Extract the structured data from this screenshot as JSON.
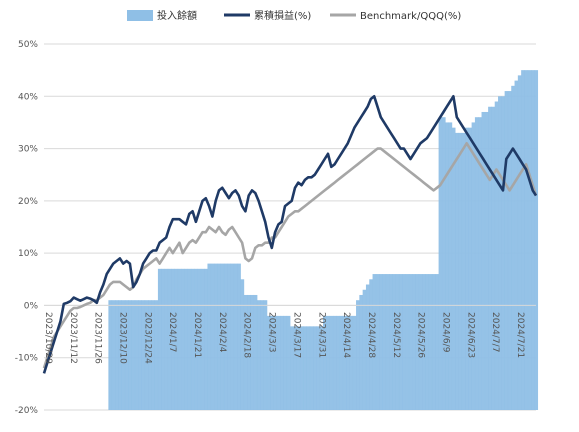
{
  "colors": {
    "invested": "#8fbfe6",
    "cumulative": "#1f3a66",
    "benchmark": "#a6a6a6",
    "grid": "#d9d9d9"
  },
  "legend": {
    "invested": "投入餘額",
    "cumulative": "累積損益(%)",
    "benchmark": "Benchmark/QQQ(%)"
  },
  "chart_data": {
    "type": "line",
    "title": "",
    "xlabel": "",
    "ylabel": "",
    "ylim": [
      -20,
      50
    ],
    "y_ticks": [
      "-20%",
      "-10%",
      "0%",
      "10%",
      "20%",
      "30%",
      "40%",
      "50%"
    ],
    "x_tick_labels": [
      "2023/10/29",
      "2023/11/12",
      "2023/11/26",
      "2023/12/10",
      "2023/12/24",
      "2024/1/7",
      "2024/1/21",
      "2024/2/4",
      "2024/2/18",
      "2024/3/3",
      "2024/3/17",
      "2024/3/31",
      "2024/4/14",
      "2024/4/28",
      "2024/5/12",
      "2024/5/26",
      "2024/6/9",
      "2024/6/23",
      "2024/7/7",
      "2024/7/21"
    ],
    "grid": true,
    "legend_position": "top",
    "series": [
      {
        "name": "投入餘額",
        "type": "area",
        "values": [
          -20,
          -20,
          -20,
          -20,
          -20,
          -20,
          -20,
          -20,
          -20,
          -20,
          -20,
          -20,
          -20,
          -20,
          -20,
          -20,
          -20,
          -20,
          -20,
          -20,
          1,
          1,
          1,
          1,
          1,
          1,
          1,
          1,
          1,
          1,
          1,
          1,
          1,
          1,
          1,
          7,
          7,
          7,
          7,
          7,
          7,
          7,
          7,
          7,
          7,
          7,
          7,
          7,
          7,
          7,
          8,
          8,
          8,
          8,
          8,
          8,
          8,
          8,
          8,
          8,
          5,
          2,
          2,
          2,
          2,
          1,
          1,
          1,
          -2,
          -2,
          -2,
          -2,
          -2,
          -2,
          -2,
          -4,
          -4,
          -4,
          -4,
          -4,
          -4,
          -4,
          -4,
          -4,
          -4,
          -2,
          -2,
          -2,
          -2,
          -2,
          -2,
          -2,
          -2,
          -2,
          -2,
          1,
          2,
          3,
          4,
          5,
          6,
          6,
          6,
          6,
          6,
          6,
          6,
          6,
          6,
          6,
          6,
          6,
          6,
          6,
          6,
          6,
          6,
          6,
          6,
          6,
          36,
          36,
          35,
          35,
          34,
          33,
          33,
          33,
          34,
          34,
          35,
          36,
          36,
          37,
          37,
          38,
          38,
          39,
          40,
          40,
          41,
          41,
          42,
          43,
          44,
          45,
          45,
          45,
          45,
          45
        ]
      },
      {
        "name": "累積損益(%)",
        "type": "line",
        "values": [
          -13,
          -11,
          -9,
          -7,
          -5,
          -3,
          0.3,
          0.5,
          0.8,
          1.5,
          1.2,
          0.9,
          1.2,
          1.5,
          1.3,
          1,
          0.5,
          2.5,
          4,
          6,
          7,
          8,
          8.5,
          9,
          8,
          8.5,
          8,
          3.5,
          4.5,
          6,
          8,
          9,
          10,
          10.5,
          10.5,
          12,
          12.5,
          13,
          15,
          16.5,
          16.5,
          16.5,
          16,
          15.5,
          17.5,
          18,
          16,
          18,
          20,
          20.5,
          19,
          17,
          20,
          22,
          22.5,
          21.5,
          20.5,
          21.5,
          22,
          21,
          19,
          18,
          21,
          22,
          21.5,
          20,
          18,
          16,
          13,
          11,
          14,
          15.5,
          16,
          19,
          19.5,
          20,
          22.5,
          23.5,
          23,
          24,
          24.5,
          24.5,
          25,
          26,
          27,
          28,
          29,
          26.5,
          27,
          28,
          29,
          30,
          31,
          32.5,
          34,
          35,
          36,
          37,
          38,
          39.5,
          40,
          38,
          36,
          35,
          34,
          33,
          32,
          31,
          30,
          30,
          29,
          28,
          29,
          30,
          31,
          31.5,
          32,
          33,
          34,
          35,
          36,
          37,
          38,
          39,
          40,
          36,
          35,
          34,
          33,
          32,
          31,
          30,
          29,
          28,
          27,
          26,
          25,
          24,
          23,
          22,
          28,
          29,
          30,
          29,
          28,
          27,
          26,
          24,
          22,
          21
        ]
      },
      {
        "name": "Benchmark/QQQ(%)",
        "type": "line",
        "values": [
          -12,
          -10,
          -8,
          -6,
          -5,
          -4,
          -3,
          -2,
          -1,
          -0.5,
          -0.5,
          -0.3,
          0,
          0.3,
          0.5,
          1,
          1,
          1.5,
          2,
          3,
          4,
          4.5,
          4.5,
          4.5,
          4,
          3.5,
          3,
          3.5,
          5,
          6,
          7,
          7.5,
          8,
          8.5,
          9,
          8,
          9,
          10,
          11,
          10,
          11,
          12,
          10,
          11,
          12,
          12.5,
          12,
          13,
          14,
          14,
          15,
          14.5,
          14,
          15,
          14,
          13.5,
          14.5,
          15,
          14,
          13,
          12,
          9,
          8.5,
          9,
          11,
          11.5,
          11.5,
          12,
          12,
          13,
          13,
          14,
          15,
          16,
          17,
          17.5,
          18,
          18,
          18.5,
          19,
          19.5,
          20,
          20.5,
          21,
          21.5,
          22,
          22.5,
          23,
          23.5,
          24,
          24.5,
          25,
          25.5,
          26,
          26.5,
          27,
          27.5,
          28,
          28.5,
          29,
          29.5,
          30,
          30,
          29.5,
          29,
          28.5,
          28,
          27.5,
          27,
          26.5,
          26,
          25.5,
          25,
          24.5,
          24,
          23.5,
          23,
          22.5,
          22,
          22.5,
          23,
          24,
          25,
          26,
          27,
          28,
          29,
          30,
          31,
          30,
          29,
          28,
          27,
          26,
          25,
          24,
          25,
          26,
          25,
          24,
          23,
          22,
          23,
          24,
          25,
          26,
          27,
          25,
          23,
          21
        ]
      }
    ]
  }
}
